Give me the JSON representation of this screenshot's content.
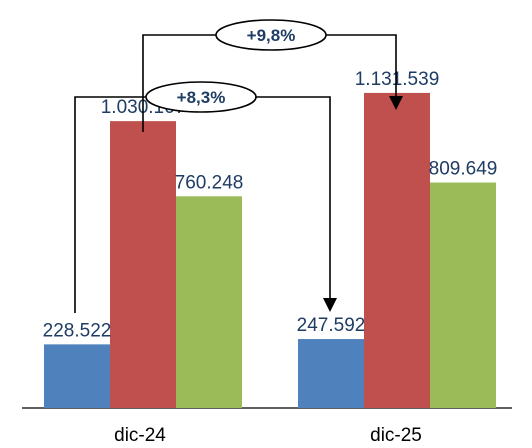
{
  "chart_data": {
    "type": "bar",
    "categories": [
      "dic-24",
      "dic-25"
    ],
    "series": [
      {
        "values": [
          228522,
          247592
        ],
        "labels": [
          "228.522",
          "247.592"
        ],
        "color": "#4f81bd"
      },
      {
        "values": [
          1030167,
          1131539
        ],
        "labels": [
          "1.030.167",
          "1.131.539"
        ],
        "color": "#c0504d"
      },
      {
        "values": [
          760248,
          809649
        ],
        "labels": [
          "760.248",
          "809.649"
        ],
        "color": "#9bbb59"
      }
    ],
    "ylim": [
      0,
      1300000
    ],
    "grid": false,
    "annotations": [
      {
        "text": "+9,8%",
        "from_series": 1,
        "from_category": 0,
        "to_category": 1
      },
      {
        "text": "+8,3%",
        "from_series": 0,
        "from_category": 0,
        "to_category": 1
      }
    ]
  }
}
